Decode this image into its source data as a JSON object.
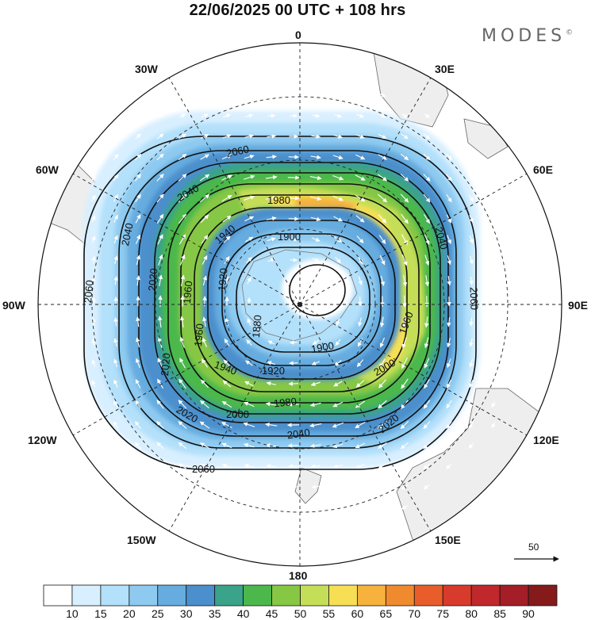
{
  "header": {
    "title": "22/06/2025  00 UTC  + 108 hrs",
    "brand": "MODES",
    "brand_mark": "©"
  },
  "map": {
    "projection": "south polar stereographic",
    "longitude_labels": [
      "0",
      "30E",
      "60E",
      "90E",
      "120E",
      "150E",
      "180",
      "150W",
      "120W",
      "90W",
      "60W",
      "30W"
    ],
    "field": "wind speed (shaded) with geopotential height contours and wind vectors",
    "contour_labels": [
      "2060",
      "2060",
      "2060",
      "2060",
      "2040",
      "2040",
      "2040",
      "2040",
      "2020",
      "2020",
      "2020",
      "2020",
      "2000",
      "2000",
      "1980",
      "1980",
      "1960",
      "1960",
      "1960",
      "1940",
      "1940",
      "1920",
      "1920",
      "1900",
      "1900",
      "1880"
    ],
    "vector_reference": "50"
  },
  "colorbar": {
    "labels": [
      "10",
      "15",
      "20",
      "25",
      "30",
      "35",
      "40",
      "45",
      "50",
      "55",
      "60",
      "65",
      "70",
      "75",
      "80",
      "85",
      "90"
    ],
    "colors": [
      "#ffffff",
      "#d8efff",
      "#b3e0fa",
      "#8ecaf0",
      "#66acdf",
      "#4b8fcc",
      "#3aa38a",
      "#4cb84c",
      "#86c744",
      "#c5de58",
      "#f7df55",
      "#f6b23d",
      "#f08a2f",
      "#e95d2b",
      "#d83a2b",
      "#c0282c",
      "#a31e26",
      "#851a1a"
    ]
  }
}
